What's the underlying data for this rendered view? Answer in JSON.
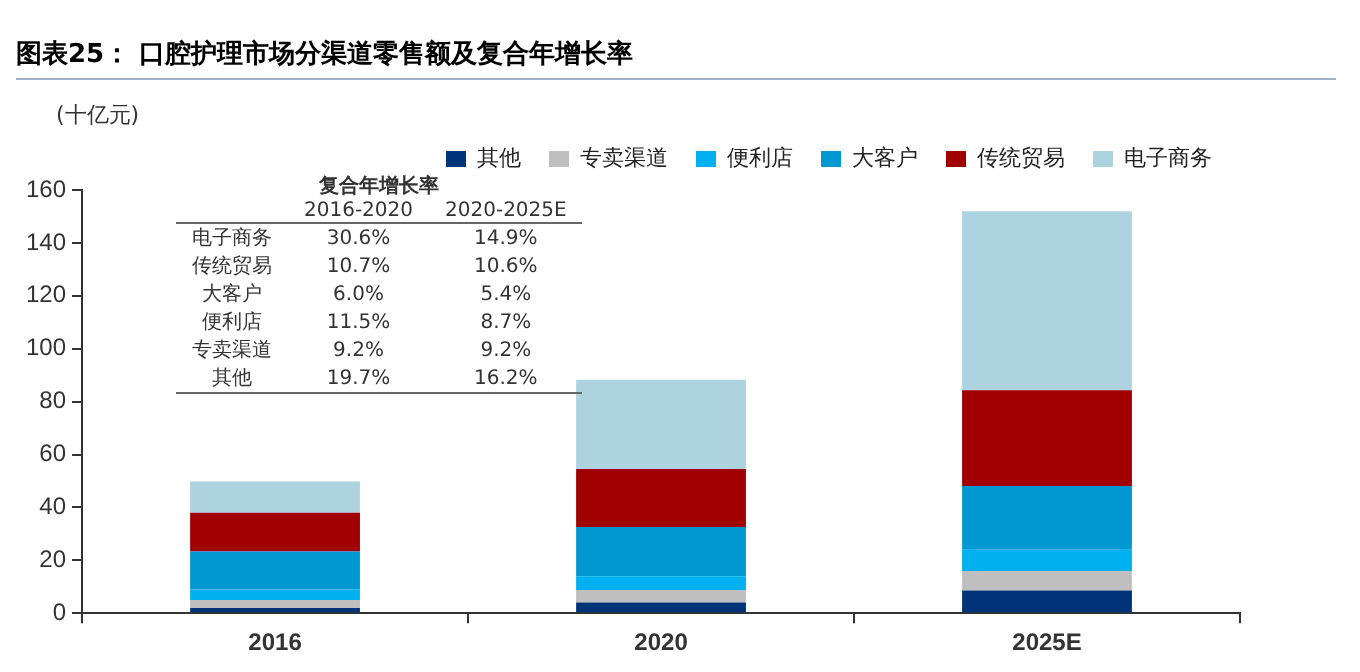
{
  "chart_data": {
    "type": "bar",
    "title": "图表25：  口腔护理市场分渠道零售额及复合年增长率",
    "ylabel": "(十亿元)",
    "categories": [
      "2016",
      "2020",
      "2025E"
    ],
    "series": [
      {
        "name": "其他",
        "color": "#003478",
        "values": [
          2,
          4,
          8.6
        ]
      },
      {
        "name": "专卖渠道",
        "color": "#bfbfbf",
        "values": [
          3,
          4.8,
          7.4
        ]
      },
      {
        "name": "便利店",
        "color": "#00b0f0",
        "values": [
          4,
          5.2,
          8
        ]
      },
      {
        "name": "大客户",
        "color": "#0098d0",
        "values": [
          14.3,
          18.6,
          24.1
        ]
      },
      {
        "name": "传统贸易",
        "color": "#a00000",
        "values": [
          14.7,
          21.9,
          36.2
        ]
      },
      {
        "name": "电子商务",
        "color": "#aed3e0",
        "values": [
          11.8,
          33.8,
          67.7
        ]
      }
    ],
    "stacked": true,
    "ylim": [
      0,
      160
    ],
    "yticks": [
      0,
      20,
      40,
      60,
      80,
      100,
      120,
      140,
      160
    ],
    "grid": false,
    "legend": "top right",
    "marker": "square",
    "annotations": [
      "复合年增长率",
      "2016-2020",
      "2020-2025E",
      "电子商务",
      "30.6%",
      "14.9%",
      "传统贸易",
      "10.7%",
      "10.6%",
      "大客户",
      "6.0%",
      "5.4%",
      "便利店",
      "11.5%",
      "8.7%",
      "专卖渠道",
      "9.2%",
      "9.2%",
      "其他",
      "19.7%",
      "16.2%"
    ]
  }
}
